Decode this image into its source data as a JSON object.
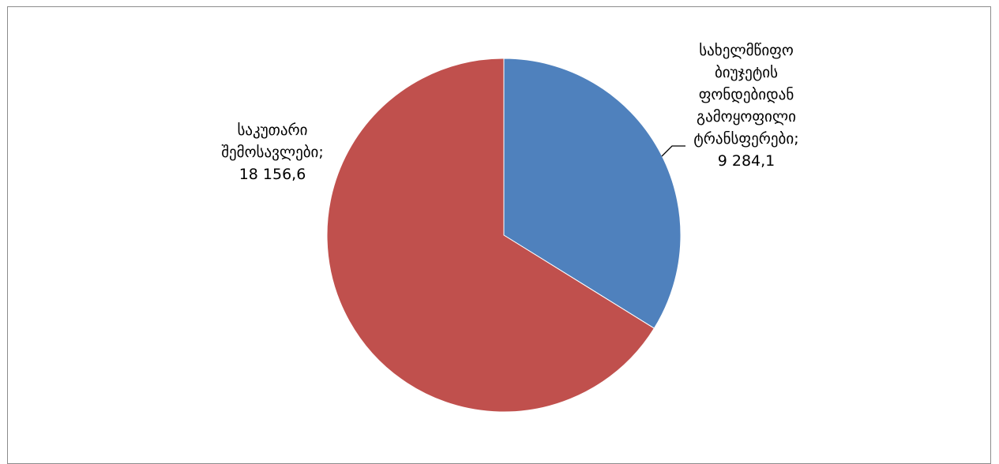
{
  "chart_data": {
    "type": "pie",
    "title": "",
    "slices": [
      {
        "label_lines": [
          "სახელმწიფო",
          "ბიუჯეტის",
          "ფონდებიდან",
          "გამოყოფილი",
          "ტრანსფერები;"
        ],
        "value": 9284.1,
        "value_text": "9 284,1",
        "color": "#4f81bd"
      },
      {
        "label_lines": [
          "საკუთარი",
          "შემოსავლები;"
        ],
        "value": 18156.6,
        "value_text": "18 156,6",
        "color": "#c0504d"
      }
    ],
    "start_angle_deg": 0,
    "direction": "clockwise",
    "leader_line_color": "#000000",
    "legend": "none"
  }
}
